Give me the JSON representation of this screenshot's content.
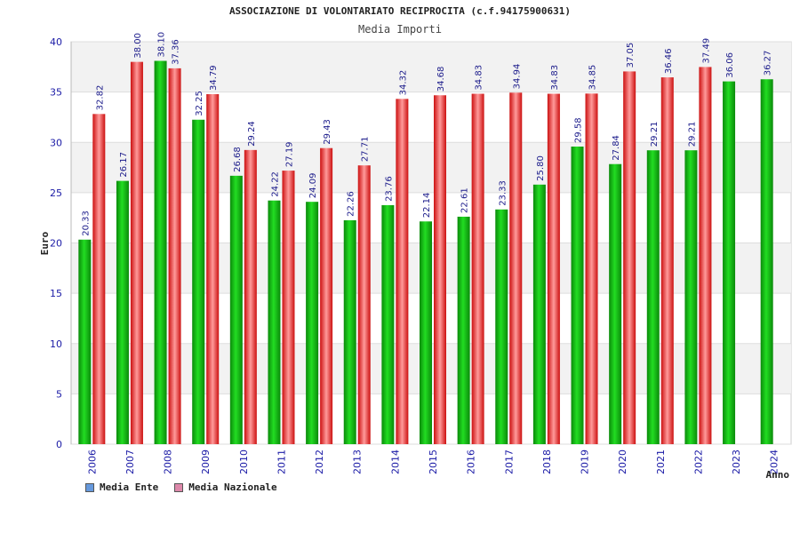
{
  "chart_data": {
    "type": "bar",
    "title": "ASSOCIAZIONE DI VOLONTARIATO RECIPROCITA (c.f.94175900631)",
    "subtitle": "Media Importi",
    "xlabel": "Anno",
    "ylabel": "Euro",
    "ylim": [
      0,
      40
    ],
    "yticks": [
      0,
      5,
      10,
      15,
      20,
      25,
      30,
      35,
      40
    ],
    "grid": true,
    "categories": [
      "2006",
      "2007",
      "2008",
      "2009",
      "2010",
      "2011",
      "2012",
      "2013",
      "2014",
      "2015",
      "2016",
      "2017",
      "2018",
      "2019",
      "2020",
      "2021",
      "2022",
      "2023",
      "2024"
    ],
    "series": [
      {
        "name": "Media Ente",
        "color": "#11aa11",
        "legend_color": "#6699dd",
        "values": [
          20.33,
          26.17,
          38.1,
          32.25,
          26.68,
          24.22,
          24.09,
          22.26,
          23.76,
          22.14,
          22.61,
          23.33,
          25.8,
          29.58,
          27.84,
          29.21,
          29.21,
          36.06,
          36.27
        ],
        "labels": [
          "20.33",
          "26.17",
          "38.10",
          "32.25",
          "26.68",
          "24.22",
          "24.09",
          "22.26",
          "23.76",
          "22.14",
          "22.61",
          "23.33",
          "25.80",
          "29.58",
          "27.84",
          "29.21",
          "29.21",
          "36.06",
          "36.27"
        ]
      },
      {
        "name": "Media Nazionale",
        "color": "#e02020",
        "legend_color": "#dd88aa",
        "values": [
          32.82,
          38.0,
          37.36,
          34.79,
          29.24,
          27.19,
          29.43,
          27.71,
          34.32,
          34.68,
          34.83,
          34.94,
          34.83,
          34.85,
          37.05,
          36.46,
          37.49,
          null,
          null
        ],
        "labels": [
          "32.82",
          "38.00",
          "37.36",
          "34.79",
          "29.24",
          "27.19",
          "29.43",
          "27.71",
          "34.32",
          "34.68",
          "34.83",
          "34.94",
          "34.83",
          "34.85",
          "37.05",
          "36.46",
          "37.49",
          null,
          null
        ]
      }
    ],
    "legend": "bottom-left"
  }
}
